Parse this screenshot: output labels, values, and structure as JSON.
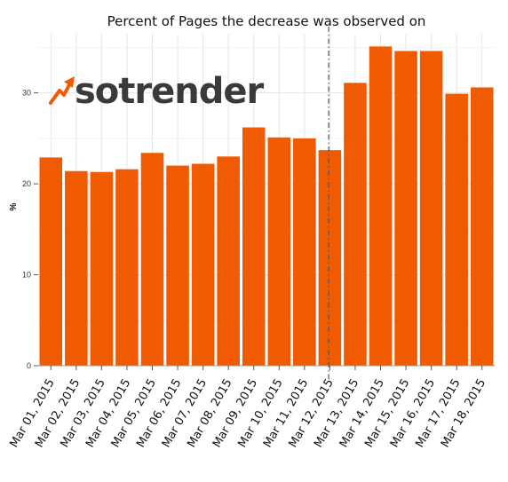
{
  "chart_data": {
    "type": "bar",
    "title": "Percent of Pages the decrease was observed on",
    "ylabel": "%",
    "xlabel": "",
    "categories": [
      "Mar 01, 2015",
      "Mar 02, 2015",
      "Mar 03, 2015",
      "Mar 04, 2015",
      "Mar 05, 2015",
      "Mar 06, 2015",
      "Mar 07, 2015",
      "Mar 08, 2015",
      "Mar 09, 2015",
      "Mar 10, 2015",
      "Mar 11, 2015",
      "Mar 12, 2015",
      "Mar 13, 2015",
      "Mar 14, 2015",
      "Mar 15, 2015",
      "Mar 16, 2015",
      "Mar 17, 2015",
      "Mar 18, 2015"
    ],
    "values": [
      22.9,
      21.4,
      21.3,
      21.6,
      23.4,
      22.0,
      22.2,
      23.0,
      26.2,
      25.1,
      25.0,
      23.7,
      31.1,
      35.1,
      34.6,
      34.6,
      29.9,
      30.6
    ],
    "ylim": [
      0,
      36.5
    ],
    "yticks": [
      0,
      10,
      20,
      30
    ],
    "grid": true,
    "bar_color": "#f05a00",
    "marker_line": {
      "position_category": "Mar 12, 2015",
      "style": "dash-dot",
      "color": "#555566"
    }
  },
  "logo": {
    "text": "sotrender",
    "icon": "trend-arrow-icon",
    "icon_color": "#f05a00",
    "text_color": "#3a3a3a"
  }
}
